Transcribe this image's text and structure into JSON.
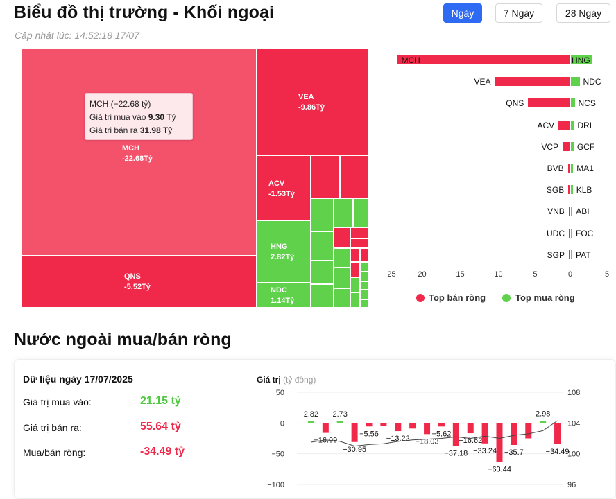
{
  "header": {
    "title": "Biểu đồ thị trường - Khối ngoại",
    "updated": "Cập nhật lúc: 14:52:18 17/07",
    "tabs": [
      {
        "label": "Ngày",
        "active": true
      },
      {
        "label": "7 Ngày",
        "active": false
      },
      {
        "label": "28 Ngày",
        "active": false
      }
    ]
  },
  "treemap": {
    "tiles": [
      {
        "ticker": "MCH",
        "value": "-22.68Tỷ"
      },
      {
        "ticker": "QNS",
        "value": "-5.52Tỷ"
      },
      {
        "ticker": "VEA",
        "value": "-9.86Tỷ"
      },
      {
        "ticker": "ACV",
        "value": "-1.53Tỷ"
      },
      {
        "ticker": "HNG",
        "value": "2.82Tỷ"
      },
      {
        "ticker": "NDC",
        "value": "1.14Tỷ"
      }
    ],
    "tooltip": {
      "title": "MCH (−22.68 tỷ)",
      "buy_label": "Giá trị mua vào",
      "buy_value": "9.30",
      "sell_label": "Giá trị bán ra",
      "sell_value": "31.98",
      "unit": "Tỷ"
    },
    "colors": {
      "sell": "#f0284a",
      "sell_big": "#f4516b",
      "buy": "#5fd14a"
    }
  },
  "top_bars": {
    "rows": [
      {
        "sell": "MCH",
        "sell_v": -22.68,
        "buy": "HNG",
        "buy_v": 2.82
      },
      {
        "sell": "VEA",
        "sell_v": -9.86,
        "buy": "NDC",
        "buy_v": 1.14
      },
      {
        "sell": "QNS",
        "sell_v": -5.52,
        "buy": "NCS",
        "buy_v": 0.5
      },
      {
        "sell": "ACV",
        "sell_v": -1.53,
        "buy": "DRI",
        "buy_v": 0.4
      },
      {
        "sell": "VCP",
        "sell_v": -1.0,
        "buy": "GCF",
        "buy_v": 0.35
      },
      {
        "sell": "BVB",
        "sell_v": -0.3,
        "buy": "MA1",
        "buy_v": 0.3
      },
      {
        "sell": "SGB",
        "sell_v": -0.25,
        "buy": "KLB",
        "buy_v": 0.25
      },
      {
        "sell": "VNB",
        "sell_v": -0.2,
        "buy": "ABI",
        "buy_v": 0.2
      },
      {
        "sell": "UDC",
        "sell_v": -0.1,
        "buy": "FOC",
        "buy_v": 0.1
      },
      {
        "sell": "SGP",
        "sell_v": -0.05,
        "buy": "PAT",
        "buy_v": 0.05
      }
    ],
    "ticks": [
      "−25",
      "−20",
      "−15",
      "−10",
      "−5",
      "0",
      "5"
    ],
    "legend": {
      "sell": "Top bán ròng",
      "buy": "Top mua ròng"
    }
  },
  "section2": {
    "title": "Nước ngoài mua/bán ròng",
    "date_label": "Dữ liệu ngày 17/07/2025",
    "buy_label": "Giá trị mua vào:",
    "buy_value": "21.15 tỷ",
    "sell_label": "Giá trị bán ra:",
    "sell_value": "55.64 tỷ",
    "net_label": "Mua/bán ròng:",
    "net_value": "-34.49 tỷ"
  },
  "chart_data": {
    "type": "bar",
    "ylabel": "Giá trị",
    "ylabel_unit": "(tỷ đồng)",
    "ylim": [
      -100,
      50
    ],
    "y_ticks": [
      "50",
      "0",
      "−50",
      "−100"
    ],
    "y2_ticks": [
      "108",
      "104",
      "100",
      "96"
    ],
    "values": [
      2.82,
      -16.09,
      2.73,
      -30.95,
      -5.56,
      -5.0,
      -13.22,
      -9.0,
      -18.03,
      -5.62,
      -37.18,
      -16.62,
      -33.24,
      -63.44,
      -35.7,
      -25.0,
      2.98,
      -34.49
    ],
    "labels": [
      "2.82",
      "−16.09",
      "2.73",
      "−30.95",
      "−5.56",
      "",
      "−13.22",
      "",
      "−18.03",
      "−5.62",
      "−37.18",
      "−16.62",
      "−33.24",
      "−63.44",
      "−35.7",
      "",
      "2.98",
      "−34.49"
    ],
    "line_index": [
      101.5,
      101.8,
      101.6,
      101.0,
      101.2,
      101.3,
      101.6,
      101.8,
      101.9,
      102.0,
      102.2,
      102.0,
      102.3,
      102.0,
      102.4,
      102.6,
      103.0,
      104.3
    ]
  }
}
